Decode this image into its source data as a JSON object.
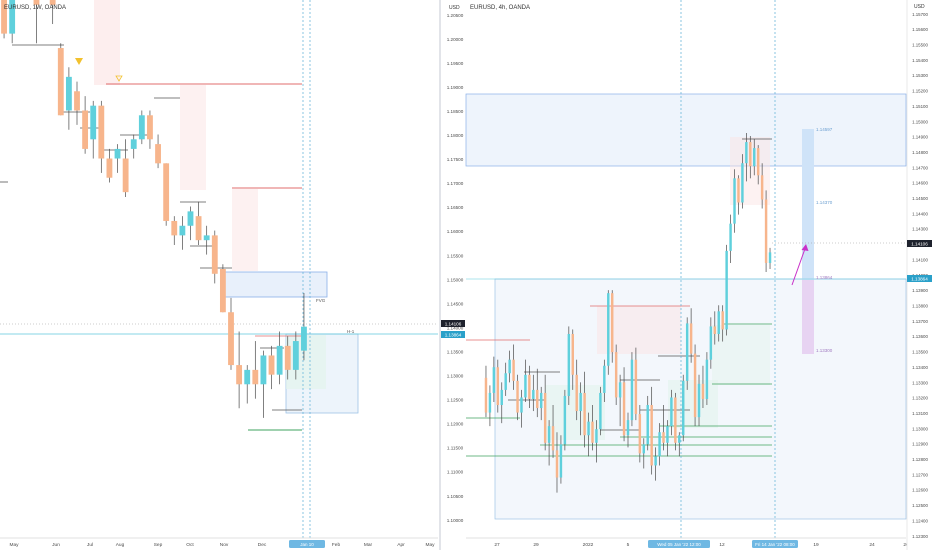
{
  "colors": {
    "up": "#5fd0dc",
    "down": "#f7b58c",
    "wick": "#4a4a4a",
    "axis_text": "#4a4a4a",
    "grid_dotted": "#5aaed6",
    "price_tag_dark": "#1e222d",
    "price_tag_blue": "#2aa0c9",
    "zone_blue": "#2962ff",
    "zone_red": "#f23645",
    "zone_green": "#089981",
    "arrow": "#c930c9"
  },
  "panels": [
    {
      "id": "left",
      "title": "EURUSD, 1W, OANDA",
      "currency": "",
      "x_labels": [
        "May",
        "Jun",
        "Jul",
        "Aug",
        "Sep",
        "Oct",
        "Nov",
        "Dec",
        "Feb",
        "Mar",
        "Apr",
        "May"
      ],
      "x_highlight": "Jan 10",
      "annotations": [
        "FVG",
        "H-1",
        "1.14106",
        "1.13864"
      ]
    },
    {
      "id": "right",
      "title": "EURUSD, 4h, OANDA",
      "currency": "USD",
      "y_labels_mid": [
        "1.20500",
        "1.20000",
        "1.19500",
        "1.19000",
        "1.18500",
        "1.18000",
        "1.17500",
        "1.17000",
        "1.16500",
        "1.16000",
        "1.15500",
        "1.15000",
        "1.14500",
        "1.14000",
        "1.13500",
        "1.13000",
        "1.12500",
        "1.12000",
        "1.11500",
        "1.11000",
        "1.10500",
        "1.10000"
      ],
      "y_labels_right": [
        "1.15700",
        "1.15600",
        "1.15500",
        "1.15400",
        "1.15300",
        "1.15200",
        "1.15100",
        "1.15000",
        "1.14900",
        "1.14800",
        "1.14700",
        "1.14600",
        "1.14500",
        "1.14400",
        "1.14300",
        "1.14200",
        "1.14100",
        "1.14000",
        "1.13900",
        "1.13800",
        "1.13700",
        "1.13600",
        "1.13500",
        "1.13400",
        "1.13300",
        "1.13200",
        "1.13100",
        "1.13000",
        "1.12900",
        "1.12800",
        "1.12700",
        "1.12600",
        "1.12500",
        "1.12400",
        "1.12300"
      ],
      "x_labels": [
        "27",
        "29",
        "2022",
        "5",
        "7",
        "10",
        "12",
        "17",
        "19",
        "24",
        "26"
      ],
      "x_highlight_1": "Wed 05 Jan '22 12:00",
      "x_highlight_2": "Fri 14 Jan '22 08:00",
      "current_price": "1.14106",
      "level_price": "1.13864",
      "position_labels": [
        "1.14597",
        "1.14370",
        "1.13864",
        "1.13300"
      ]
    }
  ],
  "chart_data": [
    {
      "type": "candlestick",
      "title": "EURUSD, 1W, OANDA",
      "xlabel": "",
      "ylabel": "",
      "x_ticks": [
        "May",
        "Jun",
        "Jul",
        "Aug",
        "Sep",
        "Oct",
        "Nov",
        "Dec",
        "Feb",
        "Mar",
        "Apr",
        "May"
      ],
      "y_unit": "USD",
      "ylim": [
        1.097,
        1.209
      ],
      "candles": [
        {
          "o": 1.215,
          "h": 1.22,
          "l": 1.201,
          "c": 1.202
        },
        {
          "o": 1.202,
          "h": 1.213,
          "l": 1.2,
          "c": 1.211
        },
        {
          "o": 1.225,
          "h": 1.227,
          "l": 1.211,
          "c": 1.216
        },
        {
          "o": 1.213,
          "h": 1.227,
          "l": 1.21,
          "c": 1.224
        },
        {
          "o": 1.224,
          "h": 1.225,
          "l": 1.2,
          "c": 1.208
        },
        {
          "o": 1.229,
          "h": 1.229,
          "l": 1.209,
          "c": 1.211
        },
        {
          "o": 1.211,
          "h": 1.214,
          "l": 1.204,
          "c": 1.208
        },
        {
          "o": 1.199,
          "h": 1.2,
          "l": 1.185,
          "c": 1.185
        },
        {
          "o": 1.186,
          "h": 1.195,
          "l": 1.182,
          "c": 1.193
        },
        {
          "o": 1.19,
          "h": 1.192,
          "l": 1.183,
          "c": 1.186
        },
        {
          "o": 1.186,
          "h": 1.189,
          "l": 1.177,
          "c": 1.178
        },
        {
          "o": 1.18,
          "h": 1.188,
          "l": 1.176,
          "c": 1.187
        },
        {
          "o": 1.187,
          "h": 1.188,
          "l": 1.173,
          "c": 1.176
        },
        {
          "o": 1.176,
          "h": 1.178,
          "l": 1.171,
          "c": 1.172
        },
        {
          "o": 1.176,
          "h": 1.179,
          "l": 1.173,
          "c": 1.178
        },
        {
          "o": 1.176,
          "h": 1.18,
          "l": 1.168,
          "c": 1.169
        },
        {
          "o": 1.178,
          "h": 1.181,
          "l": 1.176,
          "c": 1.18
        },
        {
          "o": 1.18,
          "h": 1.186,
          "l": 1.179,
          "c": 1.185
        },
        {
          "o": 1.185,
          "h": 1.186,
          "l": 1.178,
          "c": 1.18
        },
        {
          "o": 1.179,
          "h": 1.181,
          "l": 1.174,
          "c": 1.175
        },
        {
          "o": 1.175,
          "h": 1.175,
          "l": 1.162,
          "c": 1.163
        },
        {
          "o": 1.163,
          "h": 1.164,
          "l": 1.158,
          "c": 1.16
        },
        {
          "o": 1.16,
          "h": 1.164,
          "l": 1.157,
          "c": 1.162
        },
        {
          "o": 1.162,
          "h": 1.166,
          "l": 1.159,
          "c": 1.165
        },
        {
          "o": 1.164,
          "h": 1.167,
          "l": 1.158,
          "c": 1.159
        },
        {
          "o": 1.159,
          "h": 1.162,
          "l": 1.156,
          "c": 1.16
        },
        {
          "o": 1.16,
          "h": 1.161,
          "l": 1.15,
          "c": 1.152
        },
        {
          "o": 1.153,
          "h": 1.154,
          "l": 1.144,
          "c": 1.144
        },
        {
          "o": 1.144,
          "h": 1.147,
          "l": 1.132,
          "c": 1.133
        },
        {
          "o": 1.133,
          "h": 1.14,
          "l": 1.124,
          "c": 1.129
        },
        {
          "o": 1.129,
          "h": 1.133,
          "l": 1.125,
          "c": 1.132
        },
        {
          "o": 1.132,
          "h": 1.138,
          "l": 1.126,
          "c": 1.129
        },
        {
          "o": 1.129,
          "h": 1.136,
          "l": 1.122,
          "c": 1.135
        },
        {
          "o": 1.135,
          "h": 1.137,
          "l": 1.128,
          "c": 1.131
        },
        {
          "o": 1.131,
          "h": 1.14,
          "l": 1.129,
          "c": 1.137
        },
        {
          "o": 1.137,
          "h": 1.139,
          "l": 1.13,
          "c": 1.132
        },
        {
          "o": 1.132,
          "h": 1.14,
          "l": 1.13,
          "c": 1.138
        },
        {
          "o": 1.136,
          "h": 1.148,
          "l": 1.134,
          "c": 1.141
        }
      ]
    },
    {
      "type": "candlestick",
      "title": "EURUSD, 4h, OANDA",
      "xlabel": "",
      "ylabel": "",
      "x_ticks": [
        "27",
        "29",
        "2022",
        "5",
        "7",
        "10",
        "12",
        "17",
        "19",
        "24",
        "26"
      ],
      "y_unit": "USD",
      "ylim": [
        1.1222,
        1.1578
      ],
      "candles": [
        {
          "o": 1.1328,
          "h": 1.1336,
          "l": 1.1302,
          "c": 1.1305
        },
        {
          "o": 1.1305,
          "h": 1.1323,
          "l": 1.1296,
          "c": 1.1318
        },
        {
          "o": 1.1318,
          "h": 1.1342,
          "l": 1.1312,
          "c": 1.1335
        },
        {
          "o": 1.1335,
          "h": 1.134,
          "l": 1.1305,
          "c": 1.131
        },
        {
          "o": 1.131,
          "h": 1.1325,
          "l": 1.1298,
          "c": 1.132
        },
        {
          "o": 1.132,
          "h": 1.1338,
          "l": 1.1316,
          "c": 1.1331
        },
        {
          "o": 1.1331,
          "h": 1.1346,
          "l": 1.1325,
          "c": 1.134
        },
        {
          "o": 1.134,
          "h": 1.135,
          "l": 1.132,
          "c": 1.1326
        },
        {
          "o": 1.1326,
          "h": 1.133,
          "l": 1.13,
          "c": 1.1305
        },
        {
          "o": 1.1305,
          "h": 1.132,
          "l": 1.1295,
          "c": 1.1315
        },
        {
          "o": 1.1315,
          "h": 1.134,
          "l": 1.1312,
          "c": 1.133
        },
        {
          "o": 1.133,
          "h": 1.1336,
          "l": 1.1308,
          "c": 1.1314
        },
        {
          "o": 1.1314,
          "h": 1.133,
          "l": 1.1306,
          "c": 1.132
        },
        {
          "o": 1.132,
          "h": 1.1334,
          "l": 1.1302,
          "c": 1.1308
        },
        {
          "o": 1.1308,
          "h": 1.1322,
          "l": 1.13,
          "c": 1.1318
        },
        {
          "o": 1.1318,
          "h": 1.133,
          "l": 1.128,
          "c": 1.1285
        },
        {
          "o": 1.1285,
          "h": 1.13,
          "l": 1.127,
          "c": 1.1296
        },
        {
          "o": 1.1296,
          "h": 1.131,
          "l": 1.1275,
          "c": 1.128
        },
        {
          "o": 1.128,
          "h": 1.1292,
          "l": 1.1252,
          "c": 1.1262
        },
        {
          "o": 1.1262,
          "h": 1.129,
          "l": 1.1258,
          "c": 1.1284
        },
        {
          "o": 1.1284,
          "h": 1.132,
          "l": 1.128,
          "c": 1.1316
        },
        {
          "o": 1.1316,
          "h": 1.1362,
          "l": 1.131,
          "c": 1.1357
        },
        {
          "o": 1.1357,
          "h": 1.136,
          "l": 1.132,
          "c": 1.133
        },
        {
          "o": 1.133,
          "h": 1.134,
          "l": 1.13,
          "c": 1.1306
        },
        {
          "o": 1.1306,
          "h": 1.1325,
          "l": 1.129,
          "c": 1.1318
        },
        {
          "o": 1.1318,
          "h": 1.1332,
          "l": 1.1282,
          "c": 1.129
        },
        {
          "o": 1.129,
          "h": 1.1305,
          "l": 1.1276,
          "c": 1.1299
        },
        {
          "o": 1.1299,
          "h": 1.131,
          "l": 1.128,
          "c": 1.1285
        },
        {
          "o": 1.1285,
          "h": 1.13,
          "l": 1.1272,
          "c": 1.1294
        },
        {
          "o": 1.1294,
          "h": 1.1322,
          "l": 1.129,
          "c": 1.1318
        },
        {
          "o": 1.1318,
          "h": 1.134,
          "l": 1.1312,
          "c": 1.1336
        },
        {
          "o": 1.1336,
          "h": 1.1386,
          "l": 1.133,
          "c": 1.1384
        },
        {
          "o": 1.1384,
          "h": 1.1386,
          "l": 1.1338,
          "c": 1.1345
        },
        {
          "o": 1.1345,
          "h": 1.135,
          "l": 1.131,
          "c": 1.1315
        },
        {
          "o": 1.1315,
          "h": 1.133,
          "l": 1.1296,
          "c": 1.1325
        },
        {
          "o": 1.1325,
          "h": 1.1335,
          "l": 1.1286,
          "c": 1.129
        },
        {
          "o": 1.129,
          "h": 1.1305,
          "l": 1.1282,
          "c": 1.13
        },
        {
          "o": 1.13,
          "h": 1.1345,
          "l": 1.1296,
          "c": 1.134
        },
        {
          "o": 1.134,
          "h": 1.1348,
          "l": 1.13,
          "c": 1.1304
        },
        {
          "o": 1.1304,
          "h": 1.131,
          "l": 1.1272,
          "c": 1.1278
        },
        {
          "o": 1.1278,
          "h": 1.1288,
          "l": 1.1268,
          "c": 1.1284
        },
        {
          "o": 1.1284,
          "h": 1.1316,
          "l": 1.128,
          "c": 1.131
        },
        {
          "o": 1.131,
          "h": 1.1322,
          "l": 1.1264,
          "c": 1.127
        },
        {
          "o": 1.127,
          "h": 1.1282,
          "l": 1.126,
          "c": 1.1276
        },
        {
          "o": 1.1276,
          "h": 1.1298,
          "l": 1.127,
          "c": 1.1292
        },
        {
          "o": 1.1292,
          "h": 1.131,
          "l": 1.128,
          "c": 1.1285
        },
        {
          "o": 1.1285,
          "h": 1.13,
          "l": 1.1276,
          "c": 1.1296
        },
        {
          "o": 1.1296,
          "h": 1.132,
          "l": 1.129,
          "c": 1.1315
        },
        {
          "o": 1.1315,
          "h": 1.1318,
          "l": 1.128,
          "c": 1.1285
        },
        {
          "o": 1.1285,
          "h": 1.1292,
          "l": 1.1276,
          "c": 1.129
        },
        {
          "o": 1.129,
          "h": 1.133,
          "l": 1.1286,
          "c": 1.1326
        },
        {
          "o": 1.1326,
          "h": 1.1368,
          "l": 1.132,
          "c": 1.1364
        },
        {
          "o": 1.1364,
          "h": 1.1374,
          "l": 1.1338,
          "c": 1.1344
        },
        {
          "o": 1.1344,
          "h": 1.135,
          "l": 1.1296,
          "c": 1.1302
        },
        {
          "o": 1.1302,
          "h": 1.133,
          "l": 1.1296,
          "c": 1.1324
        },
        {
          "o": 1.1324,
          "h": 1.1336,
          "l": 1.1308,
          "c": 1.1314
        },
        {
          "o": 1.1314,
          "h": 1.1345,
          "l": 1.131,
          "c": 1.134
        },
        {
          "o": 1.134,
          "h": 1.1368,
          "l": 1.1334,
          "c": 1.1362
        },
        {
          "o": 1.1362,
          "h": 1.1372,
          "l": 1.135,
          "c": 1.1357
        },
        {
          "o": 1.1357,
          "h": 1.1376,
          "l": 1.1352,
          "c": 1.1372
        },
        {
          "o": 1.1372,
          "h": 1.1376,
          "l": 1.1352,
          "c": 1.136
        },
        {
          "o": 1.136,
          "h": 1.1416,
          "l": 1.1356,
          "c": 1.1412
        },
        {
          "o": 1.1412,
          "h": 1.1436,
          "l": 1.1404,
          "c": 1.143
        },
        {
          "o": 1.143,
          "h": 1.1466,
          "l": 1.1424,
          "c": 1.146
        },
        {
          "o": 1.146,
          "h": 1.1462,
          "l": 1.1436,
          "c": 1.1444
        },
        {
          "o": 1.1444,
          "h": 1.1476,
          "l": 1.144,
          "c": 1.147
        },
        {
          "o": 1.147,
          "h": 1.149,
          "l": 1.1458,
          "c": 1.1484
        },
        {
          "o": 1.1484,
          "h": 1.1488,
          "l": 1.146,
          "c": 1.1468
        },
        {
          "o": 1.1468,
          "h": 1.1486,
          "l": 1.1462,
          "c": 1.148
        },
        {
          "o": 1.148,
          "h": 1.1482,
          "l": 1.1456,
          "c": 1.1462
        },
        {
          "o": 1.1462,
          "h": 1.147,
          "l": 1.144,
          "c": 1.1446
        },
        {
          "o": 1.1446,
          "h": 1.1452,
          "l": 1.1398,
          "c": 1.1404
        },
        {
          "o": 1.1404,
          "h": 1.1414,
          "l": 1.14,
          "c": 1.1411
        }
      ]
    }
  ]
}
